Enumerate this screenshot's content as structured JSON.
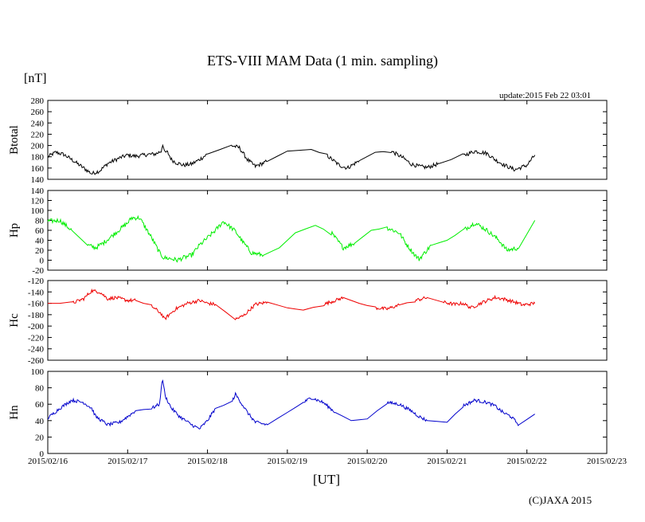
{
  "chart_data": {
    "type": "line",
    "title": "ETS-VIII MAM Data (1 min. sampling)",
    "unit_label": "[nT]",
    "update_text": "update:2015 Feb 22 03:01",
    "xlabel": "[UT]",
    "copyright": "(C)JAXA 2015",
    "x_axis": {
      "range_days": [
        0,
        7
      ],
      "tick_labels": [
        "2015/02/16",
        "2015/02/17",
        "2015/02/18",
        "2015/02/19",
        "2015/02/20",
        "2015/02/21",
        "2015/02/22",
        "2015/02/23"
      ]
    },
    "panels": [
      {
        "name": "Btotal",
        "color": "#000000",
        "ylim": [
          140,
          280
        ],
        "y_ticks": [
          140,
          160,
          180,
          200,
          220,
          240,
          260,
          280
        ],
        "x_days": [
          0.0,
          0.1,
          0.2,
          0.3,
          0.45,
          0.55,
          0.65,
          0.75,
          0.9,
          1.0,
          1.1,
          1.25,
          1.35,
          1.42,
          1.44,
          1.46,
          1.5,
          1.55,
          1.6,
          1.7,
          1.8,
          1.9,
          2.0,
          2.3,
          2.4,
          2.5,
          2.6,
          2.75,
          3.0,
          3.3,
          3.5,
          3.65,
          3.75,
          3.9,
          4.1,
          4.3,
          4.45,
          4.55,
          4.65,
          4.75,
          4.9,
          5.2,
          5.35,
          5.5,
          5.6,
          5.72,
          5.85,
          6.0,
          6.1
        ],
        "values": [
          180,
          188,
          184,
          175,
          160,
          150,
          155,
          168,
          178,
          183,
          181,
          184,
          185,
          190,
          203,
          188,
          188,
          175,
          170,
          165,
          167,
          175,
          185,
          200,
          196,
          175,
          163,
          172,
          190,
          193,
          182,
          165,
          160,
          173,
          188,
          190,
          178,
          167,
          163,
          161,
          168,
          182,
          190,
          186,
          175,
          165,
          157,
          165,
          183
        ],
        "noise": 7
      },
      {
        "name": "Hp",
        "color": "#00ee00",
        "ylim": [
          -20,
          140
        ],
        "y_ticks": [
          -20,
          0,
          20,
          40,
          60,
          80,
          100,
          120,
          140
        ],
        "x_days": [
          0.0,
          0.15,
          0.3,
          0.5,
          0.6,
          0.7,
          0.85,
          1.0,
          1.05,
          1.15,
          1.3,
          1.4,
          1.45,
          1.55,
          1.62,
          1.7,
          1.8,
          1.9,
          2.0,
          2.1,
          2.2,
          2.35,
          2.45,
          2.55,
          2.7,
          2.9,
          3.1,
          3.35,
          3.55,
          3.7,
          3.85,
          4.05,
          4.25,
          4.4,
          4.5,
          4.6,
          4.65,
          4.8,
          5.0,
          5.2,
          5.35,
          5.5,
          5.65,
          5.75,
          5.9,
          6.1
        ],
        "values": [
          78,
          80,
          60,
          30,
          25,
          35,
          55,
          75,
          85,
          85,
          45,
          15,
          5,
          3,
          0,
          5,
          10,
          30,
          45,
          60,
          78,
          58,
          35,
          15,
          10,
          25,
          55,
          70,
          55,
          25,
          35,
          60,
          65,
          55,
          30,
          10,
          2,
          30,
          40,
          60,
          75,
          60,
          40,
          20,
          25,
          80
        ],
        "noise": 9
      },
      {
        "name": "Hc",
        "color": "#ee0000",
        "ylim": [
          -260,
          -120
        ],
        "y_ticks": [
          -260,
          -240,
          -220,
          -200,
          -180,
          -160,
          -140,
          -120
        ],
        "x_days": [
          0.0,
          0.3,
          0.45,
          0.55,
          0.65,
          0.75,
          0.85,
          1.0,
          1.1,
          1.3,
          1.42,
          1.46,
          1.6,
          1.75,
          1.9,
          2.0,
          2.1,
          2.35,
          2.45,
          2.6,
          2.75,
          3.0,
          3.2,
          3.45,
          3.6,
          3.7,
          3.9,
          4.1,
          4.25,
          4.4,
          4.6,
          4.75,
          4.95,
          5.1,
          5.2,
          5.3,
          5.45,
          5.6,
          5.7,
          5.85,
          5.95,
          6.1
        ],
        "values": [
          -160,
          -160,
          -152,
          -138,
          -140,
          -152,
          -150,
          -155,
          -155,
          -165,
          -178,
          -188,
          -170,
          -160,
          -155,
          -160,
          -162,
          -188,
          -182,
          -162,
          -158,
          -168,
          -172,
          -162,
          -155,
          -150,
          -160,
          -168,
          -170,
          -163,
          -155,
          -150,
          -158,
          -162,
          -160,
          -168,
          -158,
          -150,
          -152,
          -158,
          -163,
          -160
        ],
        "noise": 6
      },
      {
        "name": "Hn",
        "color": "#0000cc",
        "ylim": [
          0,
          100
        ],
        "y_ticks": [
          0,
          20,
          40,
          60,
          80,
          100
        ],
        "x_days": [
          0.0,
          0.15,
          0.3,
          0.45,
          0.55,
          0.6,
          0.75,
          0.9,
          1.0,
          1.1,
          1.3,
          1.4,
          1.42,
          1.44,
          1.47,
          1.55,
          1.65,
          1.8,
          1.9,
          2.0,
          2.1,
          2.3,
          2.35,
          2.4,
          2.5,
          2.6,
          2.75,
          3.0,
          3.2,
          3.3,
          3.45,
          3.6,
          3.8,
          4.0,
          4.25,
          4.4,
          4.55,
          4.65,
          4.75,
          5.0,
          5.2,
          5.35,
          5.5,
          5.6,
          5.7,
          5.8,
          5.9,
          6.1
        ],
        "values": [
          43,
          55,
          65,
          62,
          55,
          45,
          35,
          38,
          45,
          52,
          55,
          60,
          80,
          90,
          70,
          55,
          45,
          35,
          30,
          40,
          55,
          62,
          72,
          65,
          50,
          38,
          35,
          50,
          62,
          68,
          62,
          50,
          40,
          42,
          62,
          60,
          52,
          45,
          40,
          38,
          58,
          65,
          62,
          58,
          50,
          45,
          35,
          48
        ],
        "noise": 4
      }
    ]
  }
}
